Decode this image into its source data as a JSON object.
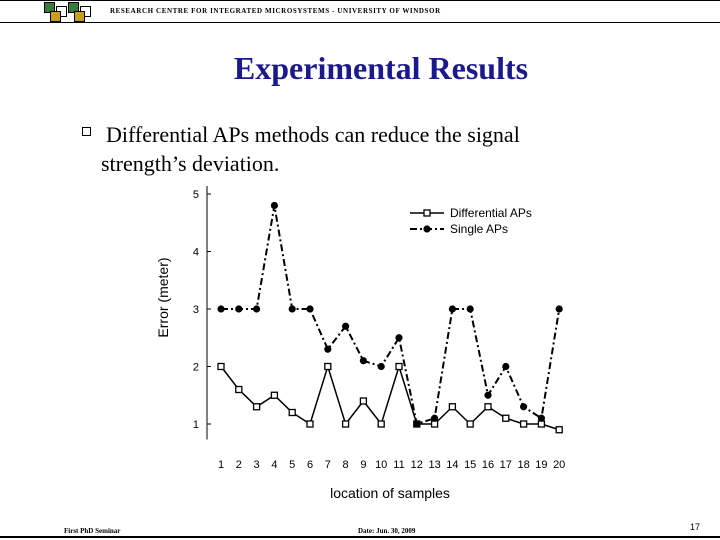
{
  "header": {
    "text": "RESEARCH CENTRE FOR INTEGRATED MICROSYSTEMS - UNIVERSITY OF WINDSOR"
  },
  "slide": {
    "title": "Experimental Results",
    "bullet": "Differential APs methods can reduce the signal strength’s  deviation."
  },
  "footer": {
    "left": "First PhD Seminar",
    "date": "Date: Jun. 30, 2009",
    "page": "17"
  },
  "colors": {
    "title": "#1a1a8c",
    "lines": "#000000"
  },
  "chart_data": {
    "type": "line",
    "x": [
      1,
      2,
      3,
      4,
      5,
      6,
      7,
      8,
      9,
      10,
      11,
      12,
      13,
      14,
      15,
      16,
      17,
      18,
      19,
      20
    ],
    "series": [
      {
        "name": "Differential APs",
        "values": [
          2,
          1.6,
          1.3,
          1.5,
          1.2,
          1,
          2,
          1,
          1.4,
          1,
          2,
          1,
          1,
          1.3,
          1,
          1.3,
          1.1,
          1,
          1,
          0.9
        ],
        "marker": "square",
        "style": "solid"
      },
      {
        "name": "Single APs",
        "values": [
          3,
          3,
          3,
          4.8,
          3,
          3,
          2.3,
          2.7,
          2.1,
          2,
          2.5,
          1,
          1.1,
          3,
          3,
          1.5,
          2,
          1.3,
          1.1,
          3
        ],
        "marker": "circle",
        "style": "dash-dot"
      }
    ],
    "xlabel": "location of samples",
    "ylabel": "Error (meter)",
    "yticks": [
      1,
      2,
      3,
      4,
      5
    ],
    "ylim": [
      0.8,
      5
    ],
    "grid": false,
    "legend": "top-right"
  }
}
